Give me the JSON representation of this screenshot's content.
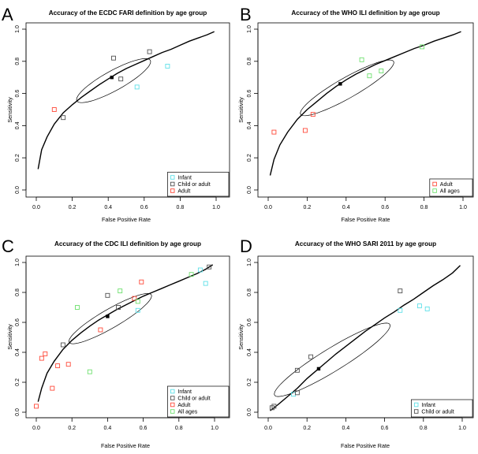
{
  "figure": {
    "background": "#ffffff"
  },
  "legend_colors": {
    "Infant": "#5fe0e8",
    "Child or adult": "#505050",
    "Adult": "#ff4a3a",
    "All ages": "#6ee06e"
  },
  "chart_data": [
    {
      "panel_letter": "A",
      "type": "scatter",
      "title": "Accuracy of the ECDC FARI definition by age group",
      "xlabel": "False Positive Rate",
      "ylabel": "Sensitivity",
      "xlim": [
        0,
        1
      ],
      "ylim": [
        0,
        1
      ],
      "xticks": [
        "0.0",
        "0.2",
        "0.4",
        "0.6",
        "0.8",
        "1.0"
      ],
      "yticks": [
        "0.0",
        "0.2",
        "0.4",
        "0.6",
        "0.8",
        "1.0"
      ],
      "legend": [
        "Infant",
        "Child or adult",
        "Adult"
      ],
      "legend_position": "bottom-right",
      "summary_point": [
        0.42,
        0.7
      ],
      "confidence_ellipse": {
        "center": [
          0.43,
          0.68
        ],
        "semi_axes": [
          0.24,
          0.06
        ],
        "angle_deg": 32
      },
      "curve": [
        [
          0.01,
          0.13
        ],
        [
          0.03,
          0.25
        ],
        [
          0.06,
          0.33
        ],
        [
          0.1,
          0.41
        ],
        [
          0.15,
          0.48
        ],
        [
          0.2,
          0.53
        ],
        [
          0.25,
          0.575
        ],
        [
          0.3,
          0.615
        ],
        [
          0.35,
          0.655
        ],
        [
          0.4,
          0.69
        ],
        [
          0.45,
          0.725
        ],
        [
          0.5,
          0.755
        ],
        [
          0.55,
          0.78
        ],
        [
          0.6,
          0.805
        ],
        [
          0.65,
          0.83
        ],
        [
          0.7,
          0.855
        ],
        [
          0.75,
          0.875
        ],
        [
          0.8,
          0.9
        ],
        [
          0.85,
          0.925
        ],
        [
          0.9,
          0.945
        ],
        [
          0.95,
          0.965
        ],
        [
          0.99,
          0.985
        ]
      ],
      "series": [
        {
          "name": "Infant",
          "points": [
            [
              0.56,
              0.64
            ],
            [
              0.73,
              0.77
            ]
          ]
        },
        {
          "name": "Child or adult",
          "points": [
            [
              0.15,
              0.45
            ],
            [
              0.43,
              0.82
            ],
            [
              0.47,
              0.69
            ],
            [
              0.63,
              0.86
            ]
          ]
        },
        {
          "name": "Adult",
          "points": [
            [
              0.1,
              0.5
            ]
          ]
        }
      ]
    },
    {
      "panel_letter": "B",
      "type": "scatter",
      "title": "Accuracy of the WHO ILI definition by age group",
      "xlabel": "False Positive Rate",
      "ylabel": "Sensitivity",
      "xlim": [
        0,
        1
      ],
      "ylim": [
        0,
        1
      ],
      "xticks": [
        "0.0",
        "0.2",
        "0.4",
        "0.6",
        "0.8",
        "1.0"
      ],
      "yticks": [
        "0.0",
        "0.2",
        "0.4",
        "0.6",
        "0.8",
        "1.0"
      ],
      "legend": [
        "Adult",
        "All ages"
      ],
      "legend_position": "bottom-right",
      "summary_point": [
        0.37,
        0.66
      ],
      "confidence_ellipse": {
        "center": [
          0.405,
          0.635
        ],
        "semi_axes": [
          0.29,
          0.06
        ],
        "angle_deg": 35
      },
      "curve": [
        [
          0.01,
          0.09
        ],
        [
          0.03,
          0.19
        ],
        [
          0.06,
          0.28
        ],
        [
          0.1,
          0.36
        ],
        [
          0.15,
          0.44
        ],
        [
          0.2,
          0.5
        ],
        [
          0.25,
          0.55
        ],
        [
          0.3,
          0.6
        ],
        [
          0.35,
          0.645
        ],
        [
          0.4,
          0.685
        ],
        [
          0.45,
          0.72
        ],
        [
          0.5,
          0.75
        ],
        [
          0.55,
          0.78
        ],
        [
          0.6,
          0.805
        ],
        [
          0.65,
          0.83
        ],
        [
          0.7,
          0.855
        ],
        [
          0.75,
          0.88
        ],
        [
          0.8,
          0.9
        ],
        [
          0.85,
          0.925
        ],
        [
          0.9,
          0.945
        ],
        [
          0.95,
          0.965
        ],
        [
          0.99,
          0.985
        ]
      ],
      "series": [
        {
          "name": "Adult",
          "points": [
            [
              0.03,
              0.36
            ],
            [
              0.19,
              0.37
            ],
            [
              0.23,
              0.47
            ]
          ]
        },
        {
          "name": "All ages",
          "points": [
            [
              0.48,
              0.81
            ],
            [
              0.52,
              0.71
            ],
            [
              0.58,
              0.74
            ],
            [
              0.79,
              0.89
            ]
          ]
        }
      ]
    },
    {
      "panel_letter": "C",
      "type": "scatter",
      "title": "Accuracy of the CDC ILI definition by age group",
      "xlabel": "False Positive Rate",
      "ylabel": "Sensitivity",
      "xlim": [
        0,
        1
      ],
      "ylim": [
        0,
        1
      ],
      "xticks": [
        "0.0",
        "0.2",
        "0.4",
        "0.6",
        "0.8",
        "1.0"
      ],
      "yticks": [
        "0.0",
        "0.2",
        "0.4",
        "0.6",
        "0.8",
        "1.0"
      ],
      "legend": [
        "Infant",
        "Child or adult",
        "Adult",
        "All ages"
      ],
      "legend_position": "bottom-right",
      "summary_point": [
        0.4,
        0.64
      ],
      "confidence_ellipse": {
        "center": [
          0.415,
          0.625
        ],
        "semi_axes": [
          0.28,
          0.06
        ],
        "angle_deg": 35
      },
      "curve": [
        [
          0.01,
          0.07
        ],
        [
          0.03,
          0.16
        ],
        [
          0.06,
          0.26
        ],
        [
          0.1,
          0.34
        ],
        [
          0.15,
          0.42
        ],
        [
          0.2,
          0.48
        ],
        [
          0.25,
          0.53
        ],
        [
          0.3,
          0.575
        ],
        [
          0.35,
          0.615
        ],
        [
          0.4,
          0.65
        ],
        [
          0.45,
          0.685
        ],
        [
          0.5,
          0.715
        ],
        [
          0.55,
          0.745
        ],
        [
          0.6,
          0.775
        ],
        [
          0.65,
          0.8
        ],
        [
          0.7,
          0.825
        ],
        [
          0.75,
          0.85
        ],
        [
          0.8,
          0.875
        ],
        [
          0.85,
          0.9
        ],
        [
          0.9,
          0.925
        ],
        [
          0.95,
          0.955
        ],
        [
          0.99,
          0.985
        ]
      ],
      "series": [
        {
          "name": "Infant",
          "points": [
            [
              0.57,
              0.68
            ],
            [
              0.95,
              0.86
            ],
            [
              0.92,
              0.95
            ]
          ]
        },
        {
          "name": "Child or adult",
          "points": [
            [
              0.15,
              0.45
            ],
            [
              0.4,
              0.78
            ],
            [
              0.46,
              0.7
            ],
            [
              0.97,
              0.97
            ]
          ]
        },
        {
          "name": "Adult",
          "points": [
            [
              0.0,
              0.04
            ],
            [
              0.03,
              0.36
            ],
            [
              0.05,
              0.39
            ],
            [
              0.09,
              0.16
            ],
            [
              0.12,
              0.31
            ],
            [
              0.18,
              0.32
            ],
            [
              0.36,
              0.55
            ],
            [
              0.55,
              0.76
            ],
            [
              0.59,
              0.87
            ]
          ]
        },
        {
          "name": "All ages",
          "points": [
            [
              0.23,
              0.7
            ],
            [
              0.3,
              0.27
            ],
            [
              0.47,
              0.81
            ],
            [
              0.57,
              0.74
            ],
            [
              0.87,
              0.92
            ]
          ]
        }
      ]
    },
    {
      "panel_letter": "D",
      "type": "scatter",
      "title": "Accuracy of the WHO SARI 2011 by age group",
      "xlabel": "False Positive Rate",
      "ylabel": "Sensitivity",
      "xlim": [
        0,
        1
      ],
      "ylim": [
        0,
        1
      ],
      "xticks": [
        "0.0",
        "0.2",
        "0.4",
        "0.6",
        "0.8",
        "1.0"
      ],
      "yticks": [
        "0.0",
        "0.2",
        "0.4",
        "0.6",
        "0.8",
        "1.0"
      ],
      "legend": [
        "Infant",
        "Child or adult"
      ],
      "legend_position": "bottom-right",
      "summary_point": [
        0.26,
        0.29
      ],
      "confidence_ellipse": {
        "center": [
          0.33,
          0.35
        ],
        "semi_axes": [
          0.38,
          0.07
        ],
        "angle_deg": 39
      },
      "curve": [
        [
          0.01,
          0.01
        ],
        [
          0.05,
          0.05
        ],
        [
          0.1,
          0.105
        ],
        [
          0.15,
          0.16
        ],
        [
          0.2,
          0.225
        ],
        [
          0.25,
          0.28
        ],
        [
          0.3,
          0.335
        ],
        [
          0.35,
          0.39
        ],
        [
          0.4,
          0.44
        ],
        [
          0.45,
          0.49
        ],
        [
          0.5,
          0.54
        ],
        [
          0.55,
          0.585
        ],
        [
          0.6,
          0.63
        ],
        [
          0.65,
          0.67
        ],
        [
          0.7,
          0.715
        ],
        [
          0.75,
          0.755
        ],
        [
          0.8,
          0.8
        ],
        [
          0.85,
          0.845
        ],
        [
          0.9,
          0.885
        ],
        [
          0.95,
          0.93
        ],
        [
          0.99,
          0.98
        ]
      ],
      "series": [
        {
          "name": "Infant",
          "points": [
            [
              0.13,
              0.12
            ],
            [
              0.68,
              0.68
            ],
            [
              0.78,
              0.71
            ],
            [
              0.82,
              0.69
            ]
          ]
        },
        {
          "name": "Child or adult",
          "points": [
            [
              0.02,
              0.03
            ],
            [
              0.03,
              0.04
            ],
            [
              0.15,
              0.13
            ],
            [
              0.15,
              0.28
            ],
            [
              0.22,
              0.37
            ],
            [
              0.68,
              0.81
            ]
          ]
        }
      ]
    }
  ]
}
